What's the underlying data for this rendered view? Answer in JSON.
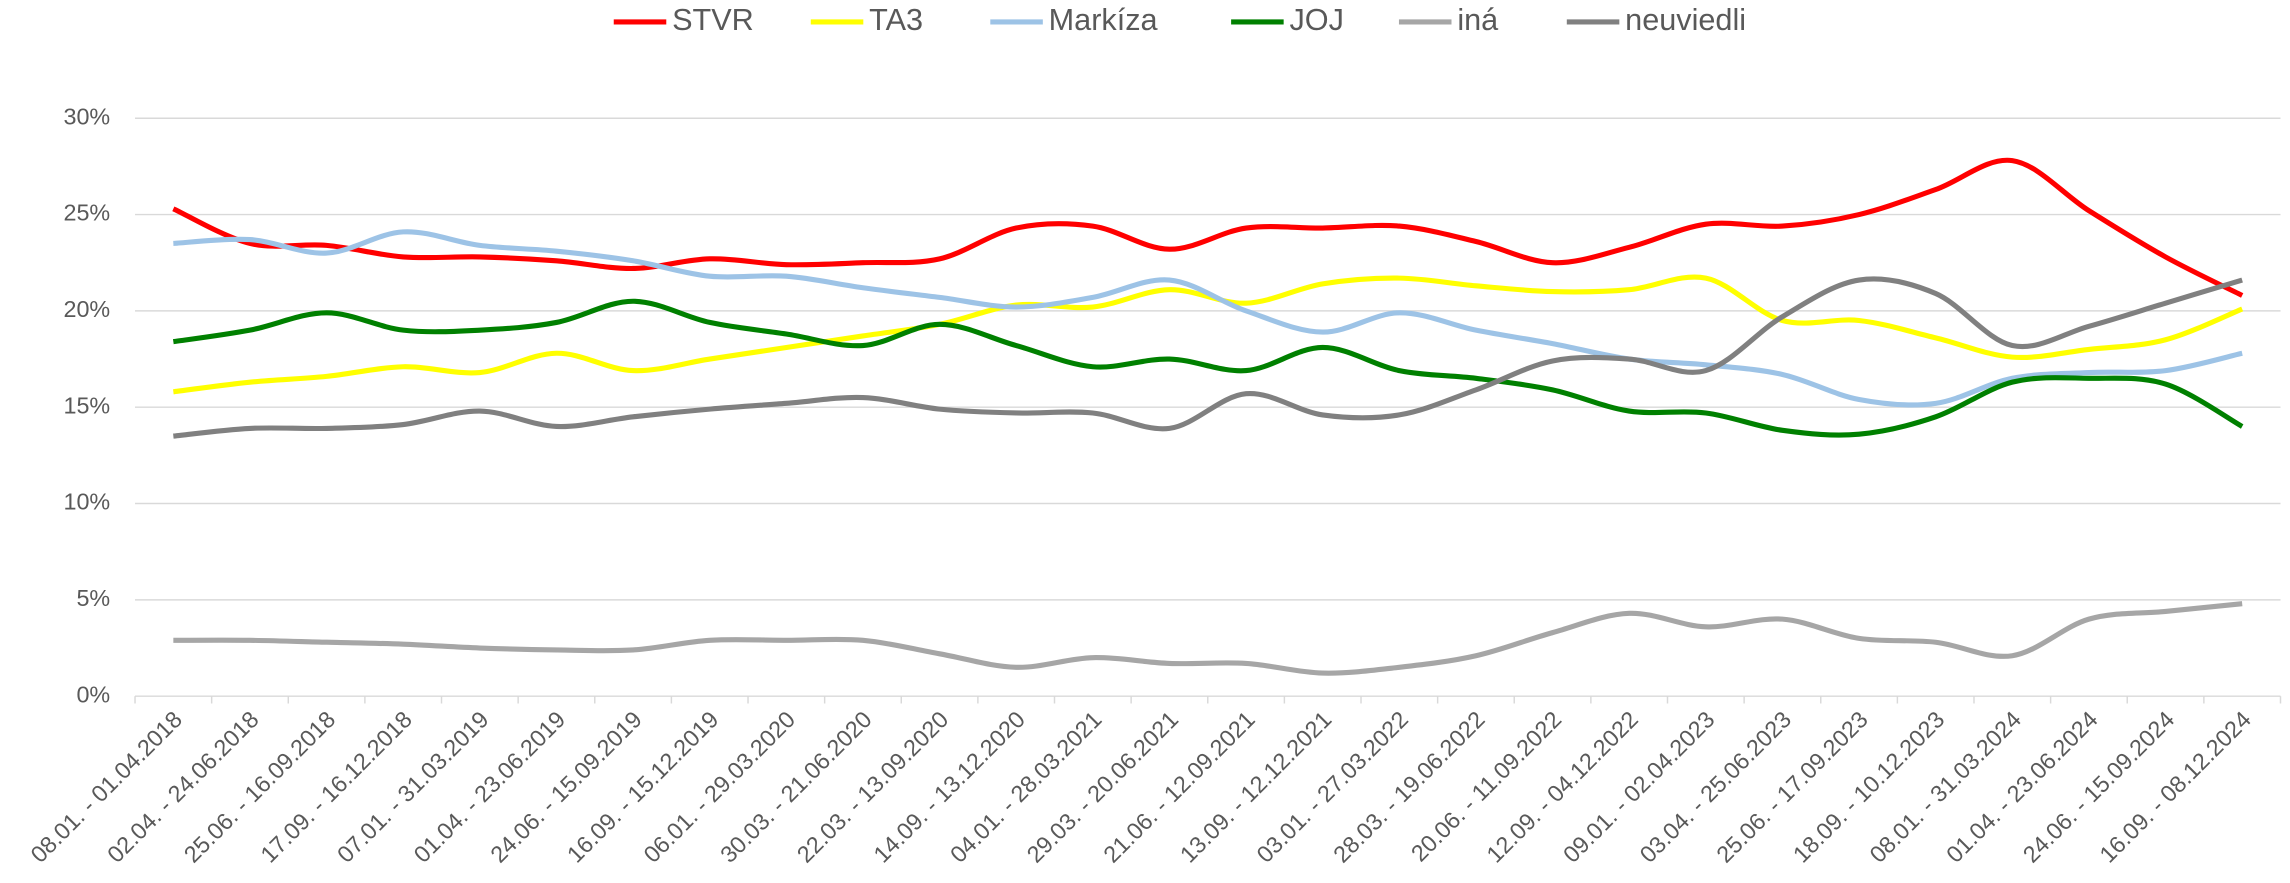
{
  "chart_data": {
    "type": "line",
    "categories": [
      "08.01. - 01.04.2018",
      "02.04. - 24.06.2018",
      "25.06. - 16.09.2018",
      "17.09. - 16.12.2018",
      "07.01. - 31.03.2019",
      "01.04. - 23.06.2019",
      "24.06. - 15.09.2019",
      "16.09. - 15.12.2019",
      "06.01. - 29.03.2020",
      "30.03. - 21.06.2020",
      "22.03. - 13.09.2020",
      "14.09. - 13.12.2020",
      "04.01. - 28.03.2021",
      "29.03. - 20.06.2021",
      "21.06. - 12.09.2021",
      "13.09. - 12.12.2021",
      "03.01. - 27.03.2022",
      "28.03. - 19.06.2022",
      "20.06. - 11.09.2022",
      "12.09. - 04.12.2022",
      "09.01. - 02.04.2023",
      "03.04. - 25.06.2023",
      "25.06. - 17.09.2023",
      "18.09. - 10.12.2023",
      "08.01. - 31.03.2024",
      "01.04. - 23.06.2024",
      "24.06. - 15.09.2024",
      "16.09. - 08.12.2024"
    ],
    "series": [
      {
        "name": "STVR",
        "color": "#ff0000",
        "values": [
          25.3,
          23.5,
          23.4,
          22.8,
          22.8,
          22.6,
          22.2,
          22.7,
          22.4,
          22.5,
          22.7,
          24.3,
          24.4,
          23.2,
          24.3,
          24.3,
          24.4,
          23.6,
          22.5,
          23.3,
          24.5,
          24.4,
          25.0,
          26.3,
          27.8,
          25.2,
          22.8,
          20.8
        ]
      },
      {
        "name": "TA3",
        "color": "#ffff00",
        "values": [
          15.8,
          16.3,
          16.6,
          17.1,
          16.8,
          17.8,
          16.9,
          17.5,
          18.1,
          18.7,
          19.3,
          20.3,
          20.2,
          21.1,
          20.4,
          21.4,
          21.7,
          21.3,
          21.0,
          21.1,
          21.7,
          19.5,
          19.5,
          18.6,
          17.6,
          18.0,
          18.5,
          20.1
        ]
      },
      {
        "name": "Markíza",
        "color": "#9dc3e6",
        "values": [
          23.5,
          23.7,
          23.0,
          24.1,
          23.4,
          23.1,
          22.6,
          21.8,
          21.8,
          21.2,
          20.7,
          20.2,
          20.7,
          21.6,
          20.0,
          18.9,
          19.9,
          19.0,
          18.3,
          17.5,
          17.2,
          16.7,
          15.4,
          15.2,
          16.5,
          16.8,
          16.9,
          17.8
        ]
      },
      {
        "name": "JOJ",
        "color": "#008000",
        "values": [
          18.4,
          19.0,
          19.9,
          19.0,
          19.0,
          19.4,
          20.5,
          19.4,
          18.8,
          18.2,
          19.3,
          18.2,
          17.1,
          17.5,
          16.9,
          18.1,
          16.9,
          16.5,
          15.9,
          14.8,
          14.7,
          13.8,
          13.6,
          14.5,
          16.3,
          16.5,
          16.2,
          14.0
        ]
      },
      {
        "name": "iná",
        "color": "#a6a6a6",
        "values": [
          2.9,
          2.9,
          2.8,
          2.7,
          2.5,
          2.4,
          2.4,
          2.9,
          2.9,
          2.9,
          2.2,
          1.5,
          2.0,
          1.7,
          1.7,
          1.2,
          1.5,
          2.1,
          3.3,
          4.3,
          3.6,
          4.0,
          3.0,
          2.8,
          2.1,
          4.0,
          4.4,
          4.8
        ]
      },
      {
        "name": "neuviedli",
        "color": "#808080",
        "values": [
          13.5,
          13.9,
          13.9,
          14.1,
          14.8,
          14.0,
          14.5,
          14.9,
          15.2,
          15.5,
          14.9,
          14.7,
          14.7,
          13.9,
          15.7,
          14.6,
          14.6,
          15.9,
          17.4,
          17.5,
          16.9,
          19.7,
          21.6,
          20.9,
          18.2,
          19.2,
          20.4,
          21.6
        ]
      }
    ],
    "ylim": [
      0,
      30
    ],
    "yticks": [
      {
        "value": 0,
        "label": "0%"
      },
      {
        "value": 5,
        "label": "5%"
      },
      {
        "value": 10,
        "label": "10%"
      },
      {
        "value": 15,
        "label": "15%"
      },
      {
        "value": 20,
        "label": "20%"
      },
      {
        "value": 25,
        "label": "25%"
      },
      {
        "value": 30,
        "label": "30%"
      }
    ],
    "grid": true,
    "legend": "top"
  }
}
